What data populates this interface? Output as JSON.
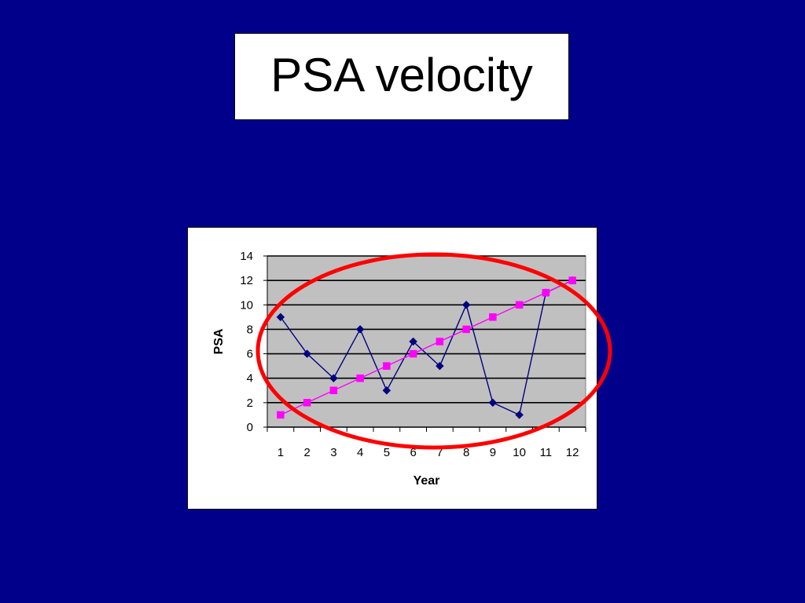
{
  "slide": {
    "background_color": "#00008B",
    "title": "PSA velocity"
  },
  "chart_data": {
    "type": "line",
    "title": "",
    "xlabel": "Year",
    "ylabel": "PSA",
    "categories": [
      "1",
      "2",
      "3",
      "4",
      "5",
      "6",
      "7",
      "8",
      "9",
      "10",
      "11",
      "12"
    ],
    "ylim": [
      0,
      14
    ],
    "yticks": [
      "0",
      "2",
      "4",
      "6",
      "8",
      "10",
      "12",
      "14"
    ],
    "grid": true,
    "legend": "none",
    "plot_background": "#C0C0C0",
    "series": [
      {
        "values": [
          9,
          6,
          4,
          8,
          3,
          7,
          5,
          10,
          2,
          1,
          11,
          12
        ],
        "color": "#000080",
        "marker": "diamond"
      },
      {
        "values": [
          1,
          2,
          3,
          4,
          5,
          6,
          7,
          8,
          9,
          10,
          11,
          12
        ],
        "color": "#FF00FF",
        "marker": "square"
      }
    ]
  },
  "annotation": {
    "shape": "ellipse",
    "color": "#FF0000"
  }
}
